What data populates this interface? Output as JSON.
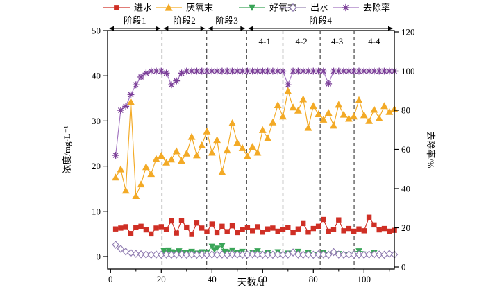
{
  "chart_data": {
    "type": "line",
    "xlabel": "天数/d",
    "ylabel_left": "浓度/mg·L⁻¹",
    "ylabel_right": "去除率/%",
    "xlim": [
      -1.2,
      112.5
    ],
    "x_ticks": [
      0,
      20,
      40,
      60,
      80,
      100
    ],
    "x_minor_ticks": [
      10,
      30,
      50,
      70,
      90,
      110
    ],
    "ylim_left": [
      0,
      50
    ],
    "left_ticks": [
      0,
      10,
      20,
      30,
      40,
      50
    ],
    "ylim_right": [
      0,
      120
    ],
    "right_ticks": [
      0,
      20,
      40,
      60,
      80,
      100,
      120
    ],
    "grid": false,
    "legend_position": "top",
    "phase_dividers_days": [
      20.3,
      37.9,
      53.7,
      68,
      82.7,
      96.1
    ],
    "phases": [
      {
        "label": "阶段1",
        "start": -1.2,
        "end": 20.3
      },
      {
        "label": "阶段2",
        "start": 20.3,
        "end": 37.9
      },
      {
        "label": "阶段3",
        "start": 37.9,
        "end": 53.7
      },
      {
        "label": "阶段4",
        "start": 53.7,
        "end": 112.5
      }
    ],
    "sub_phases": [
      {
        "label": "4-1",
        "x_day": 60.8
      },
      {
        "label": "4-2",
        "x_day": 75.3
      },
      {
        "label": "4-3",
        "x_day": 89.4
      },
      {
        "label": "4-4",
        "x_day": 104
      }
    ],
    "series": [
      {
        "name": "去除率",
        "axis": "right",
        "marker": "asterisk",
        "color": "#7b3f98",
        "line_color": "#a274c0",
        "x": [
          2,
          4,
          6,
          8,
          10,
          12,
          14,
          16,
          18,
          20,
          22,
          24,
          26,
          28,
          30,
          32,
          34,
          36,
          38,
          40,
          42,
          44,
          46,
          48,
          50,
          52,
          54,
          56,
          58,
          60,
          62,
          64,
          66,
          68,
          70,
          72,
          74,
          76,
          78,
          80,
          82,
          84,
          86,
          88,
          90,
          92,
          94,
          96,
          98,
          100,
          102,
          104,
          106,
          108,
          110,
          112
        ],
        "y": [
          57,
          80,
          82,
          88,
          93,
          97,
          99,
          100,
          100,
          100,
          99,
          93,
          95,
          99,
          100,
          100,
          100,
          100,
          100,
          100,
          100,
          100,
          100,
          100,
          100,
          100,
          100,
          100,
          100,
          100,
          100,
          100,
          100,
          100,
          93,
          100,
          100,
          100,
          100,
          100,
          100,
          100,
          93.5,
          100,
          100,
          100,
          100,
          100,
          100,
          100,
          100,
          100,
          100,
          100,
          100,
          100
        ]
      },
      {
        "name": "厌氧末",
        "axis": "left",
        "marker": "triangle_up",
        "color": "#f3aa26",
        "line_color": "#f3aa26",
        "x": [
          2,
          4,
          6,
          8,
          10,
          12,
          14,
          16,
          18,
          20,
          22,
          24,
          26,
          28,
          30,
          32,
          34,
          36,
          38,
          40,
          42,
          44,
          46,
          48,
          50,
          52,
          54,
          56,
          58,
          60,
          62,
          64,
          66,
          68,
          70,
          72,
          74,
          76,
          78,
          80,
          82,
          84,
          86,
          88,
          90,
          92,
          94,
          96,
          98,
          100,
          102,
          104,
          106,
          108,
          110,
          112
        ],
        "y": [
          17.5,
          19.3,
          14.6,
          34.2,
          13.4,
          16.0,
          19.8,
          18.3,
          21.6,
          22.3,
          20.8,
          21.5,
          23.3,
          21.2,
          22.8,
          26.5,
          22.4,
          24.6,
          27.7,
          23.0,
          25.8,
          18.7,
          23.5,
          29.5,
          25.2,
          24.0,
          22.2,
          24.3,
          23.0,
          28.0,
          26.2,
          29.7,
          33.5,
          31.0,
          36.6,
          33.0,
          32.3,
          34.8,
          28.5,
          33.3,
          31.5,
          30.3,
          31.8,
          29.0,
          33.6,
          31.4,
          30.5,
          31.0,
          34.6,
          31.3,
          30.0,
          32.5,
          30.6,
          33.3,
          32.0,
          32.6
        ]
      },
      {
        "name": "进水",
        "axis": "left",
        "marker": "square",
        "color": "#cf2f25",
        "line_color": "#cf2f25",
        "x": [
          2,
          4,
          6,
          8,
          10,
          12,
          14,
          16,
          18,
          20,
          22,
          24,
          26,
          28,
          30,
          32,
          34,
          36,
          38,
          40,
          42,
          44,
          46,
          48,
          50,
          52,
          54,
          56,
          58,
          60,
          62,
          64,
          66,
          68,
          70,
          72,
          74,
          76,
          78,
          80,
          82,
          84,
          86,
          88,
          90,
          92,
          94,
          96,
          98,
          100,
          102,
          104,
          106,
          108,
          110,
          112
        ],
        "y": [
          6.1,
          6.3,
          6.6,
          5.1,
          6.4,
          6.7,
          5.9,
          5.0,
          6.3,
          6.6,
          6.0,
          7.9,
          5.2,
          8.0,
          6.5,
          4.9,
          7.4,
          6.3,
          5.5,
          7.2,
          5.3,
          6.7,
          5.5,
          6.8,
          5.3,
          6.0,
          6.4,
          5.7,
          6.6,
          5.4,
          6.1,
          6.3,
          5.6,
          6.0,
          6.4,
          5.3,
          6.1,
          7.3,
          5.4,
          6.2,
          6.7,
          8.2,
          5.6,
          6.0,
          8.1,
          5.7,
          6.2,
          5.6,
          6.1,
          5.7,
          8.7,
          7.0,
          5.9,
          6.2,
          5.6,
          5.8
        ]
      },
      {
        "name": "好氧末",
        "axis": "left",
        "marker": "triangle_down",
        "color": "#3aa558",
        "line_color": "#3aa558",
        "x": [
          21,
          22,
          23,
          24,
          26,
          27,
          28,
          30,
          32,
          34,
          36,
          38,
          40,
          41,
          42,
          44,
          45,
          46,
          48,
          50,
          52,
          56,
          58,
          62,
          66,
          70,
          74,
          78,
          84,
          90,
          98,
          104
        ],
        "y": [
          1.3,
          0.9,
          1.4,
          1.0,
          0.8,
          1.2,
          0.9,
          0.8,
          1.1,
          0.7,
          1.0,
          0.9,
          2.2,
          1.5,
          1.8,
          2.4,
          1.1,
          1.0,
          1.4,
          0.8,
          1.1,
          0.9,
          1.2,
          0.8,
          1.0,
          0.7,
          1.1,
          0.8,
          0.9,
          0.6,
          1.2,
          0.8
        ]
      },
      {
        "name": "出水",
        "axis": "left",
        "marker": "diamond",
        "color": "#8f7bb0",
        "line_color": "#9a87b5",
        "x": [
          2,
          4,
          6,
          8,
          10,
          12,
          14,
          16,
          18,
          20,
          22,
          24,
          26,
          28,
          30,
          32,
          34,
          36,
          38,
          40,
          42,
          44,
          46,
          48,
          50,
          52,
          54,
          56,
          58,
          60,
          62,
          64,
          66,
          68,
          70,
          72,
          74,
          76,
          78,
          80,
          82,
          84,
          86,
          88,
          90,
          92,
          94,
          96,
          98,
          100,
          102,
          104,
          106,
          108,
          110,
          112
        ],
        "y": [
          2.6,
          1.7,
          1.1,
          0.8,
          0.6,
          0.5,
          0.45,
          0.4,
          0.45,
          0.4,
          0.45,
          0.4,
          0.45,
          0.5,
          0.4,
          0.45,
          0.4,
          0.45,
          0.4,
          0.45,
          0.4,
          0.45,
          0.4,
          0.5,
          0.45,
          0.4,
          0.45,
          0.5,
          0.45,
          0.4,
          0.45,
          0.4,
          0.45,
          0.4,
          0.45,
          0.9,
          0.45,
          0.4,
          0.45,
          0.4,
          0.5,
          0.45,
          0.4,
          1.0,
          0.45,
          0.4,
          0.45,
          0.4,
          0.45,
          0.4,
          0.45,
          0.5,
          0.45,
          0.4,
          0.6,
          0.45
        ]
      }
    ],
    "legend": [
      {
        "label": "进水",
        "marker": "square",
        "color": "#cf2f25",
        "line_color": "#cf2f25"
      },
      {
        "label": "厌氧末",
        "marker": "triangle_up",
        "color": "#f3aa26",
        "line_color": "#f3aa26"
      },
      {
        "label": "好氧末",
        "marker": "triangle_down",
        "color": "#3aa558",
        "line_color": "#3aa558"
      },
      {
        "label": "出水",
        "marker": "diamond",
        "color": "#8f7bb0",
        "line_color": "#9a87b5"
      },
      {
        "label": "去除率",
        "marker": "asterisk",
        "color": "#7b3f98",
        "line_color": "#a274c0"
      }
    ]
  },
  "colors": {
    "background": "#ffffff",
    "frame": "#000000",
    "divider": "#555555"
  }
}
